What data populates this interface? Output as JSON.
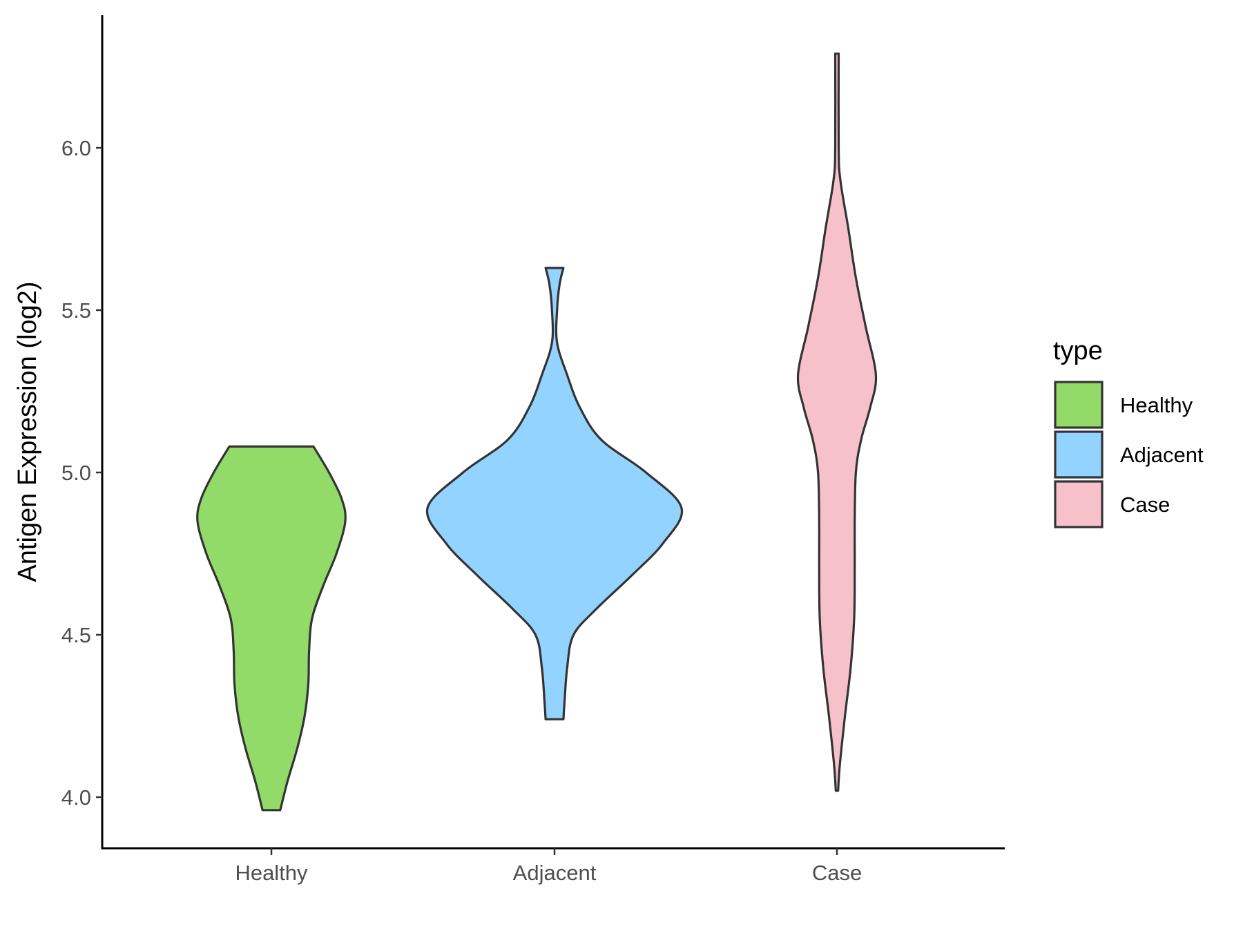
{
  "chart_data": {
    "type": "violin",
    "xlabel": "",
    "ylabel": "Antigen Expression (log2)",
    "categories": [
      "Healthy",
      "Adjacent",
      "Case"
    ],
    "ylim": [
      3.88,
      6.42
    ],
    "yticks": [
      "4.0",
      "4.5",
      "5.0",
      "5.5",
      "6.0"
    ],
    "grid": false,
    "legend": {
      "title": "type",
      "position": "right",
      "entries": [
        "Healthy",
        "Adjacent",
        "Case"
      ]
    },
    "colors": {
      "Healthy": "#93DB69",
      "Adjacent": "#93D3FF",
      "Case": "#F7C1CC",
      "outline": "#333333",
      "axis": "#000000"
    },
    "series": [
      {
        "category": "Healthy",
        "min": 3.96,
        "max": 5.08,
        "profile": [
          {
            "y": 3.96,
            "w": 0.12
          },
          {
            "y": 4.05,
            "w": 0.22
          },
          {
            "y": 4.15,
            "w": 0.35
          },
          {
            "y": 4.25,
            "w": 0.45
          },
          {
            "y": 4.35,
            "w": 0.5
          },
          {
            "y": 4.45,
            "w": 0.51
          },
          {
            "y": 4.55,
            "w": 0.55
          },
          {
            "y": 4.65,
            "w": 0.7
          },
          {
            "y": 4.75,
            "w": 0.88
          },
          {
            "y": 4.85,
            "w": 1.0
          },
          {
            "y": 4.92,
            "w": 0.95
          },
          {
            "y": 5.0,
            "w": 0.78
          },
          {
            "y": 5.08,
            "w": 0.57
          }
        ]
      },
      {
        "category": "Adjacent",
        "min": 4.24,
        "max": 5.63,
        "profile": [
          {
            "y": 4.24,
            "w": 0.07
          },
          {
            "y": 4.3,
            "w": 0.08
          },
          {
            "y": 4.4,
            "w": 0.1
          },
          {
            "y": 4.5,
            "w": 0.15
          },
          {
            "y": 4.58,
            "w": 0.33
          },
          {
            "y": 4.68,
            "w": 0.6
          },
          {
            "y": 4.78,
            "w": 0.85
          },
          {
            "y": 4.89,
            "w": 1.0
          },
          {
            "y": 5.0,
            "w": 0.72
          },
          {
            "y": 5.1,
            "w": 0.37
          },
          {
            "y": 5.2,
            "w": 0.2
          },
          {
            "y": 5.3,
            "w": 0.1
          },
          {
            "y": 5.4,
            "w": 0.02
          },
          {
            "y": 5.5,
            "w": 0.02
          },
          {
            "y": 5.58,
            "w": 0.04
          },
          {
            "y": 5.63,
            "w": 0.07
          }
        ]
      },
      {
        "category": "Case",
        "min": 4.02,
        "max": 6.29,
        "profile": [
          {
            "y": 4.02,
            "w": 0.02
          },
          {
            "y": 4.1,
            "w": 0.05
          },
          {
            "y": 4.25,
            "w": 0.14
          },
          {
            "y": 4.4,
            "w": 0.24
          },
          {
            "y": 4.55,
            "w": 0.3
          },
          {
            "y": 4.7,
            "w": 0.31
          },
          {
            "y": 4.85,
            "w": 0.31
          },
          {
            "y": 5.0,
            "w": 0.33
          },
          {
            "y": 5.1,
            "w": 0.42
          },
          {
            "y": 5.2,
            "w": 0.58
          },
          {
            "y": 5.3,
            "w": 0.68
          },
          {
            "y": 5.45,
            "w": 0.5
          },
          {
            "y": 5.6,
            "w": 0.33
          },
          {
            "y": 5.75,
            "w": 0.2
          },
          {
            "y": 5.9,
            "w": 0.06
          },
          {
            "y": 6.0,
            "w": 0.03
          },
          {
            "y": 6.29,
            "w": 0.03
          }
        ]
      }
    ]
  }
}
